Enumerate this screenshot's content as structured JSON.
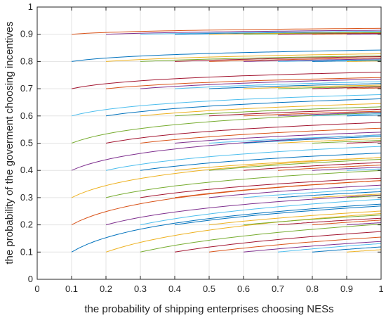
{
  "chart_data": {
    "type": "line",
    "title": "",
    "xlabel": "the probability of shipping enterprises choosing NESs",
    "ylabel": "the probability of the goverment choosing incentives",
    "xlim": [
      0,
      1
    ],
    "ylim": [
      0,
      1
    ],
    "xticks": [
      "0",
      "0.1",
      "0.2",
      "0.3",
      "0.4",
      "0.5",
      "0.6",
      "0.7",
      "0.8",
      "0.9",
      "1"
    ],
    "yticks": [
      "0",
      "0.1",
      "0.2",
      "0.3",
      "0.4",
      "0.5",
      "0.6",
      "0.7",
      "0.8",
      "0.9",
      "1"
    ],
    "grid": true,
    "legend": "none",
    "curve_family": {
      "description_free": true,
      "start_x_values": [
        0.1,
        0.2,
        0.3,
        0.4,
        0.5,
        0.6,
        0.7,
        0.8,
        0.9
      ],
      "start_y_values": [
        0.1,
        0.2,
        0.3,
        0.4,
        0.5,
        0.6,
        0.7,
        0.8,
        0.9
      ],
      "end_x": 1.0
    },
    "series_colors": [
      "#0072BD",
      "#D95319",
      "#EDB120",
      "#7E2F8E",
      "#77AC30",
      "#4DBEEE",
      "#A2142F"
    ]
  }
}
